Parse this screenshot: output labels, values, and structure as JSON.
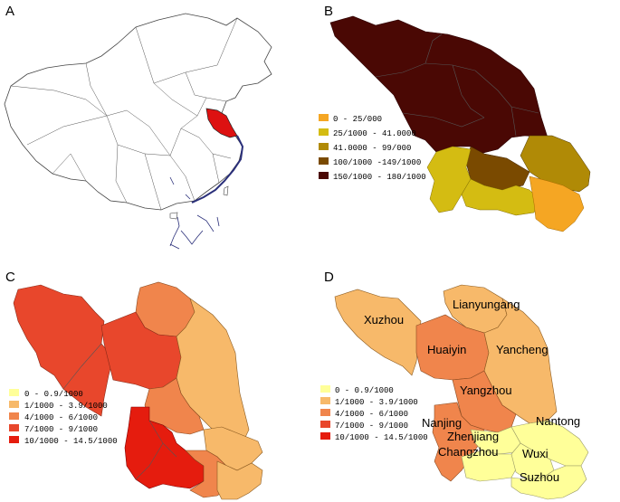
{
  "panels": {
    "a": {
      "letter": "A"
    },
    "b": {
      "letter": "B",
      "legend": [
        {
          "label": "0 - 25/000",
          "color": "#f5a623"
        },
        {
          "label": "25/1000 - 41.0000",
          "color": "#d4bc12"
        },
        {
          "label": "41.0000 - 99/000",
          "color": "#b08a06"
        },
        {
          "label": "100/1000 -149/1000",
          "color": "#7a4a00"
        },
        {
          "label": "150/1000 - 180/1000",
          "color": "#4a0804"
        }
      ]
    },
    "c": {
      "letter": "C",
      "legend": [
        {
          "label": "0 - 0.9/1000",
          "color": "#ffff99"
        },
        {
          "label": "1/1000 - 3.9/1000",
          "color": "#f7b96a"
        },
        {
          "label": "4/1000 - 6/1000",
          "color": "#f0854c"
        },
        {
          "label": "7/1000 - 9/1000",
          "color": "#e8472c"
        },
        {
          "label": "10/1000 - 14.5/1000",
          "color": "#e51c0e"
        }
      ]
    },
    "d": {
      "letter": "D",
      "legend": [
        {
          "label": "0 - 0.9/1000",
          "color": "#ffff99"
        },
        {
          "label": "1/1000 - 3.9/1000",
          "color": "#f7b96a"
        },
        {
          "label": "4/1000 - 6/1000",
          "color": "#f0854c"
        },
        {
          "label": "7/1000 - 9/1000",
          "color": "#e8472c"
        },
        {
          "label": "10/1000 - 14.5/1000",
          "color": "#e51c0e"
        }
      ],
      "cities": {
        "xuzhou": "Xuzhou",
        "lianyungang": "Lianyungang",
        "huaiyin": "Huaiyin",
        "yancheng": "Yancheng",
        "yangzhou": "Yangzhou",
        "nanjing": "Nanjing",
        "zhenjiang": "Zhenjiang",
        "nantong": "Nantong",
        "changzhou": "Changzhou",
        "wuxi": "Wuxi",
        "suzhou": "Suzhou"
      }
    }
  },
  "colors": {
    "china_outline": "#444444",
    "jiangsu_highlight": "#dd1111",
    "coast": "#2a2f7a"
  }
}
